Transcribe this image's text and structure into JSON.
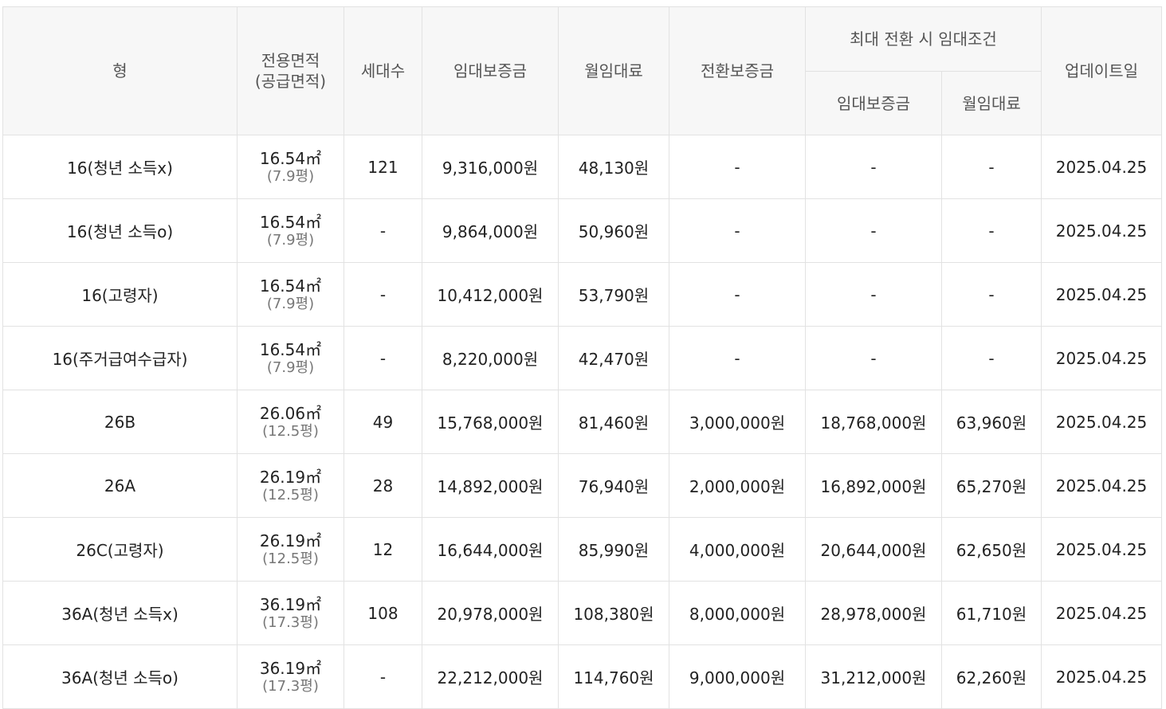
{
  "table": {
    "headers": {
      "type": "형",
      "area_line1": "전용면적",
      "area_line2": "(공급면적)",
      "households": "세대수",
      "deposit": "임대보증금",
      "monthly_rent": "월임대료",
      "conversion_deposit": "전환보증금",
      "max_conversion_group": "최대 전환 시 임대조건",
      "max_deposit": "임대보증금",
      "max_monthly_rent": "월임대료",
      "updated": "업데이트일"
    },
    "rows": [
      {
        "type": "16(청년 소득x)",
        "area": "16.54㎡",
        "supply": "(7.9평)",
        "households": "121",
        "deposit": "9,316,000원",
        "monthly_rent": "48,130원",
        "conversion_deposit": "-",
        "max_deposit": "-",
        "max_monthly_rent": "-",
        "updated": "2025.04.25"
      },
      {
        "type": "16(청년 소득o)",
        "area": "16.54㎡",
        "supply": "(7.9평)",
        "households": "-",
        "deposit": "9,864,000원",
        "monthly_rent": "50,960원",
        "conversion_deposit": "-",
        "max_deposit": "-",
        "max_monthly_rent": "-",
        "updated": "2025.04.25"
      },
      {
        "type": "16(고령자)",
        "area": "16.54㎡",
        "supply": "(7.9평)",
        "households": "-",
        "deposit": "10,412,000원",
        "monthly_rent": "53,790원",
        "conversion_deposit": "-",
        "max_deposit": "-",
        "max_monthly_rent": "-",
        "updated": "2025.04.25"
      },
      {
        "type": "16(주거급여수급자)",
        "area": "16.54㎡",
        "supply": "(7.9평)",
        "households": "-",
        "deposit": "8,220,000원",
        "monthly_rent": "42,470원",
        "conversion_deposit": "-",
        "max_deposit": "-",
        "max_monthly_rent": "-",
        "updated": "2025.04.25"
      },
      {
        "type": "26B",
        "area": "26.06㎡",
        "supply": "(12.5평)",
        "households": "49",
        "deposit": "15,768,000원",
        "monthly_rent": "81,460원",
        "conversion_deposit": "3,000,000원",
        "max_deposit": "18,768,000원",
        "max_monthly_rent": "63,960원",
        "updated": "2025.04.25"
      },
      {
        "type": "26A",
        "area": "26.19㎡",
        "supply": "(12.5평)",
        "households": "28",
        "deposit": "14,892,000원",
        "monthly_rent": "76,940원",
        "conversion_deposit": "2,000,000원",
        "max_deposit": "16,892,000원",
        "max_monthly_rent": "65,270원",
        "updated": "2025.04.25"
      },
      {
        "type": "26C(고령자)",
        "area": "26.19㎡",
        "supply": "(12.5평)",
        "households": "12",
        "deposit": "16,644,000원",
        "monthly_rent": "85,990원",
        "conversion_deposit": "4,000,000원",
        "max_deposit": "20,644,000원",
        "max_monthly_rent": "62,650원",
        "updated": "2025.04.25"
      },
      {
        "type": "36A(청년 소득x)",
        "area": "36.19㎡",
        "supply": "(17.3평)",
        "households": "108",
        "deposit": "20,978,000원",
        "monthly_rent": "108,380원",
        "conversion_deposit": "8,000,000원",
        "max_deposit": "28,978,000원",
        "max_monthly_rent": "61,710원",
        "updated": "2025.04.25"
      },
      {
        "type": "36A(청년 소득o)",
        "area": "36.19㎡",
        "supply": "(17.3평)",
        "households": "-",
        "deposit": "22,212,000원",
        "monthly_rent": "114,760원",
        "conversion_deposit": "9,000,000원",
        "max_deposit": "31,212,000원",
        "max_monthly_rent": "62,260원",
        "updated": "2025.04.25"
      }
    ]
  }
}
